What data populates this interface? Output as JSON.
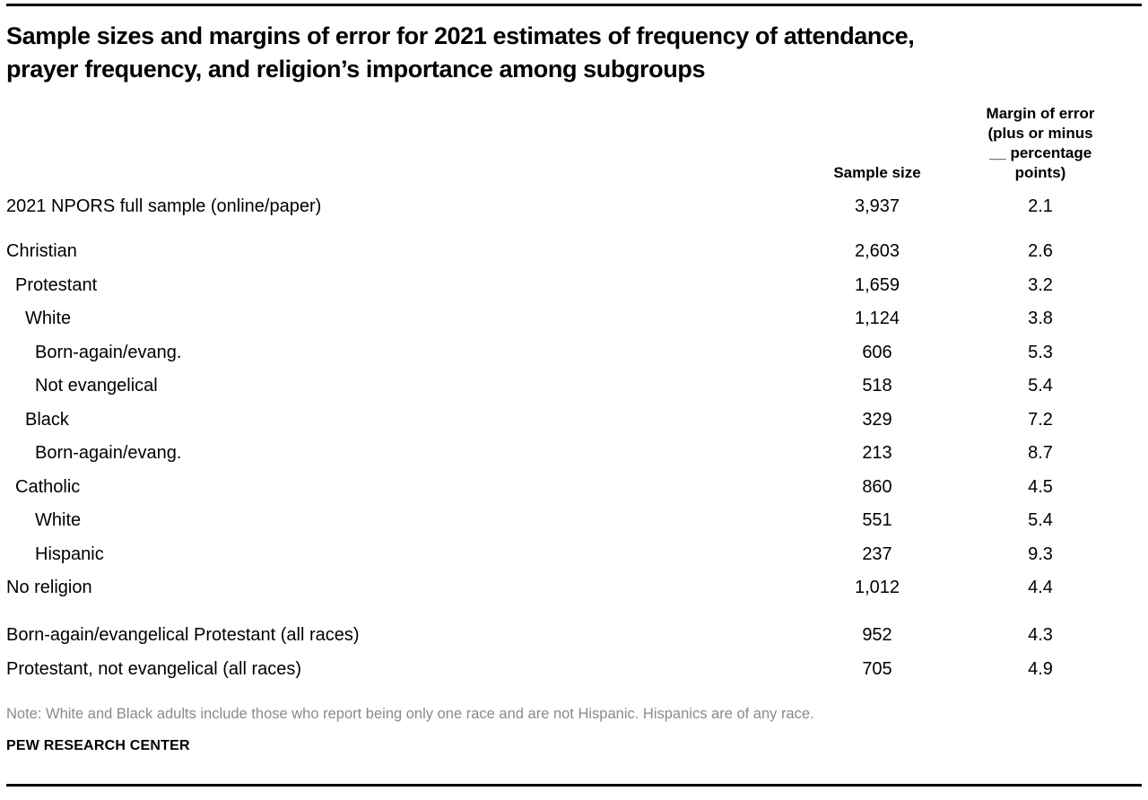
{
  "chart_data": {
    "type": "table",
    "title": "Sample sizes and margins of error for 2021 estimates of frequency of attendance, prayer frequency, and religion’s importance among subgroups",
    "title_lines": [
      "Sample sizes and margins of error for 2021 estimates of frequency of attendance,",
      "prayer frequency, and religion’s importance among subgroups"
    ],
    "columns": [
      "",
      "Sample size",
      "Margin of error (plus or minus __ percentage points)"
    ],
    "header": {
      "sample_size": "Sample size",
      "moe_lines": [
        "Margin of error",
        "(plus or minus",
        "__ percentage",
        "points)"
      ]
    },
    "rows": [
      {
        "label": "2021 NPORS full sample (online/paper)",
        "indent": 0,
        "sample_size": "3,937",
        "moe": "2.1"
      },
      {
        "label": "Christian",
        "indent": 0,
        "sample_size": "2,603",
        "moe": "2.6"
      },
      {
        "label": "Protestant",
        "indent": 1,
        "sample_size": "1,659",
        "moe": "3.2"
      },
      {
        "label": "White",
        "indent": 2,
        "sample_size": "1,124",
        "moe": "3.8"
      },
      {
        "label": "Born-again/evang.",
        "indent": 3,
        "sample_size": "606",
        "moe": "5.3"
      },
      {
        "label": "Not evangelical",
        "indent": 3,
        "sample_size": "518",
        "moe": "5.4"
      },
      {
        "label": "Black",
        "indent": 2,
        "sample_size": "329",
        "moe": "7.2"
      },
      {
        "label": "Born-again/evang.",
        "indent": 3,
        "sample_size": "213",
        "moe": "8.7"
      },
      {
        "label": "Catholic",
        "indent": 1,
        "sample_size": "860",
        "moe": "4.5"
      },
      {
        "label": "White",
        "indent": 3,
        "sample_size": "551",
        "moe": "5.4"
      },
      {
        "label": "Hispanic",
        "indent": 3,
        "sample_size": "237",
        "moe": "9.3"
      },
      {
        "label": "No religion",
        "indent": 0,
        "sample_size": "1,012",
        "moe": "4.4"
      },
      {
        "label": "Born-again/evangelical Protestant (all races)",
        "indent": 0,
        "sample_size": "952",
        "moe": "4.3"
      },
      {
        "label": "Protestant, not evangelical (all races)",
        "indent": 0,
        "sample_size": "705",
        "moe": "4.9"
      }
    ],
    "note": "Note: White and Black adults include those who report being only one race and are not Hispanic. Hispanics are of any race.",
    "source": "PEW RESEARCH CENTER"
  }
}
